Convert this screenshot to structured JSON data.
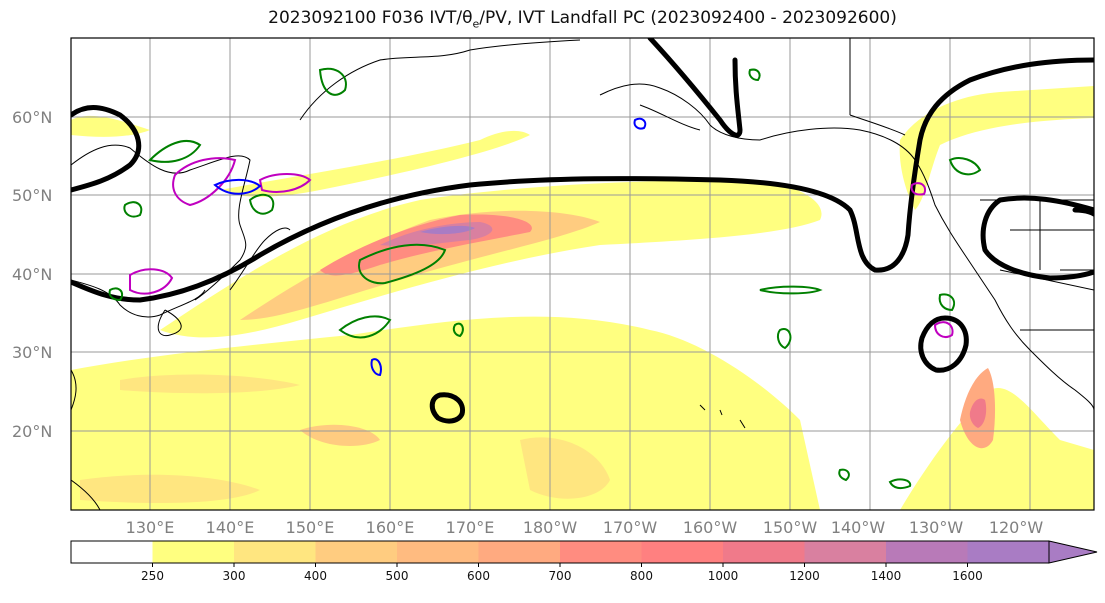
{
  "title": {
    "prefix": "2023092100 F036 IVT/θ",
    "sub": "e",
    "suffix": "/PV, IVT Landfall PC (2023092400 - 2023092600)"
  },
  "map": {
    "lat_labels": [
      "60°N",
      "50°N",
      "40°N",
      "30°N",
      "20°N"
    ],
    "lon_labels": [
      "130°E",
      "140°E",
      "150°E",
      "160°E",
      "170°E",
      "180°W",
      "170°W",
      "160°W",
      "150°W",
      "140°W",
      "130°W",
      "120°W"
    ]
  },
  "colorbar": {
    "ticks": [
      "250",
      "300",
      "400",
      "500",
      "600",
      "700",
      "800",
      "1000",
      "1200",
      "1400",
      "1600"
    ],
    "colors": [
      "#ffffff",
      "#ffff80",
      "#ffe680",
      "#ffcc80",
      "#ffbb80",
      "#ffaa80",
      "#ff8c80",
      "#ff8080",
      "#f07a8a",
      "#d980a0",
      "#b87ab8",
      "#a97cc4"
    ],
    "extend_color": "#a97cc4"
  },
  "colors": {
    "theta_e": "#000000",
    "pv_green": "#008000",
    "pv_blue": "#0000ff",
    "pv_magenta": "#c000c0"
  }
}
